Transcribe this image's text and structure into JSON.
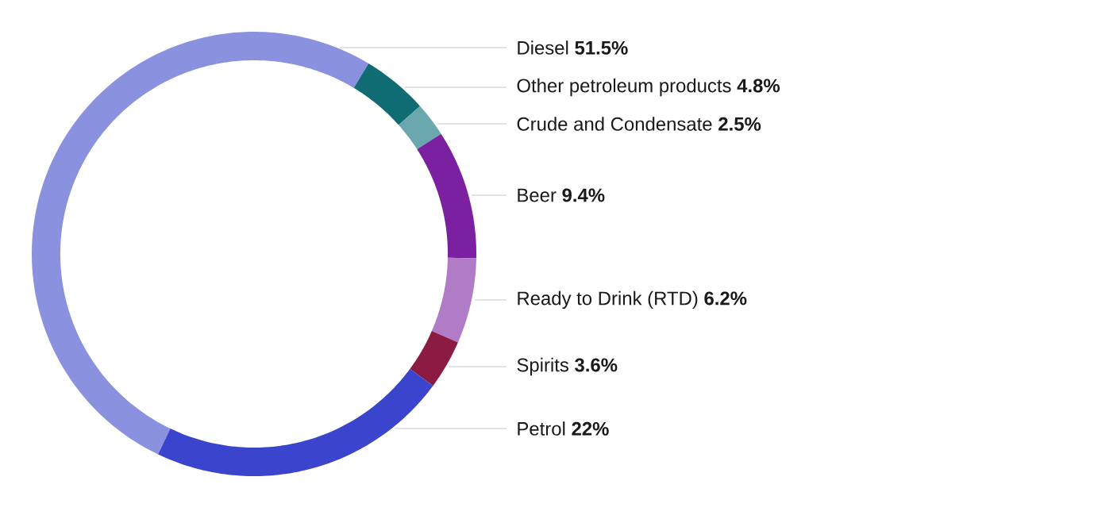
{
  "chart_data": {
    "type": "donut",
    "categories": [
      "Diesel",
      "Other petroleum products",
      "Crude and Condensate",
      "Beer",
      "Ready to Drink (RTD)",
      "Spirits",
      "Petrol"
    ],
    "values": [
      51.5,
      4.8,
      2.5,
      9.4,
      6.2,
      3.6,
      22
    ],
    "value_labels": [
      "51.5%",
      "4.8%",
      "2.5%",
      "9.4%",
      "6.2%",
      "3.6%",
      "22%"
    ],
    "colors": [
      "#8a92e0",
      "#0f6c72",
      "#6ba7ae",
      "#7a20a0",
      "#b07cc7",
      "#8b1b42",
      "#3a44cc"
    ]
  }
}
